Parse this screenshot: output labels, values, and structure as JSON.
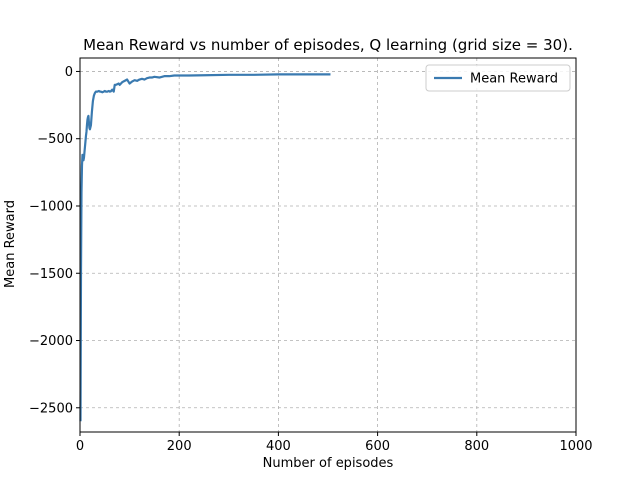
{
  "chart_data": {
    "type": "line",
    "title": "Mean Reward vs number of episodes, Q learning (grid size = 30).",
    "xlabel": "Number of episodes",
    "ylabel": "Mean Reward",
    "xlim": [
      0,
      1000
    ],
    "ylim": [
      -2680,
      100
    ],
    "xticks": [
      0,
      200,
      400,
      600,
      800,
      1000
    ],
    "xtick_labels": [
      "0",
      "200",
      "400",
      "600",
      "800",
      "1000"
    ],
    "yticks": [
      -2500,
      -2000,
      -1500,
      -1000,
      -500,
      0
    ],
    "ytick_labels": [
      "−2500",
      "−2000",
      "−1500",
      "−1000",
      "−500",
      "0"
    ],
    "grid": true,
    "grid_style": "dashed",
    "legend_position": "top-right",
    "series": [
      {
        "name": "Mean Reward",
        "color": "#3a7ab0",
        "x": [
          1,
          2,
          3,
          4,
          5,
          6,
          7,
          8,
          9,
          10,
          11,
          12,
          13,
          14,
          15,
          16,
          17,
          18,
          19,
          20,
          22,
          24,
          26,
          28,
          30,
          32,
          35,
          38,
          40,
          42,
          45,
          48,
          50,
          52,
          55,
          58,
          60,
          62,
          65,
          68,
          70,
          72,
          75,
          78,
          80,
          85,
          90,
          95,
          100,
          105,
          110,
          115,
          120,
          125,
          130,
          135,
          140,
          145,
          150,
          160,
          170,
          180,
          190,
          200,
          220,
          250,
          300,
          350,
          400,
          450,
          505
        ],
        "y": [
          -2600,
          -1500,
          -900,
          -700,
          -620,
          -650,
          -660,
          -640,
          -600,
          -560,
          -520,
          -480,
          -450,
          -400,
          -360,
          -340,
          -330,
          -380,
          -420,
          -430,
          -400,
          -300,
          -220,
          -180,
          -160,
          -150,
          -150,
          -145,
          -150,
          -150,
          -155,
          -150,
          -145,
          -150,
          -150,
          -145,
          -150,
          -148,
          -135,
          -150,
          -100,
          -100,
          -95,
          -90,
          -100,
          -80,
          -70,
          -60,
          -90,
          -75,
          -65,
          -70,
          -60,
          -55,
          -60,
          -50,
          -45,
          -45,
          -40,
          -45,
          -35,
          -35,
          -30,
          -30,
          -30,
          -28,
          -25,
          -25,
          -22,
          -22,
          -22
        ]
      }
    ]
  }
}
